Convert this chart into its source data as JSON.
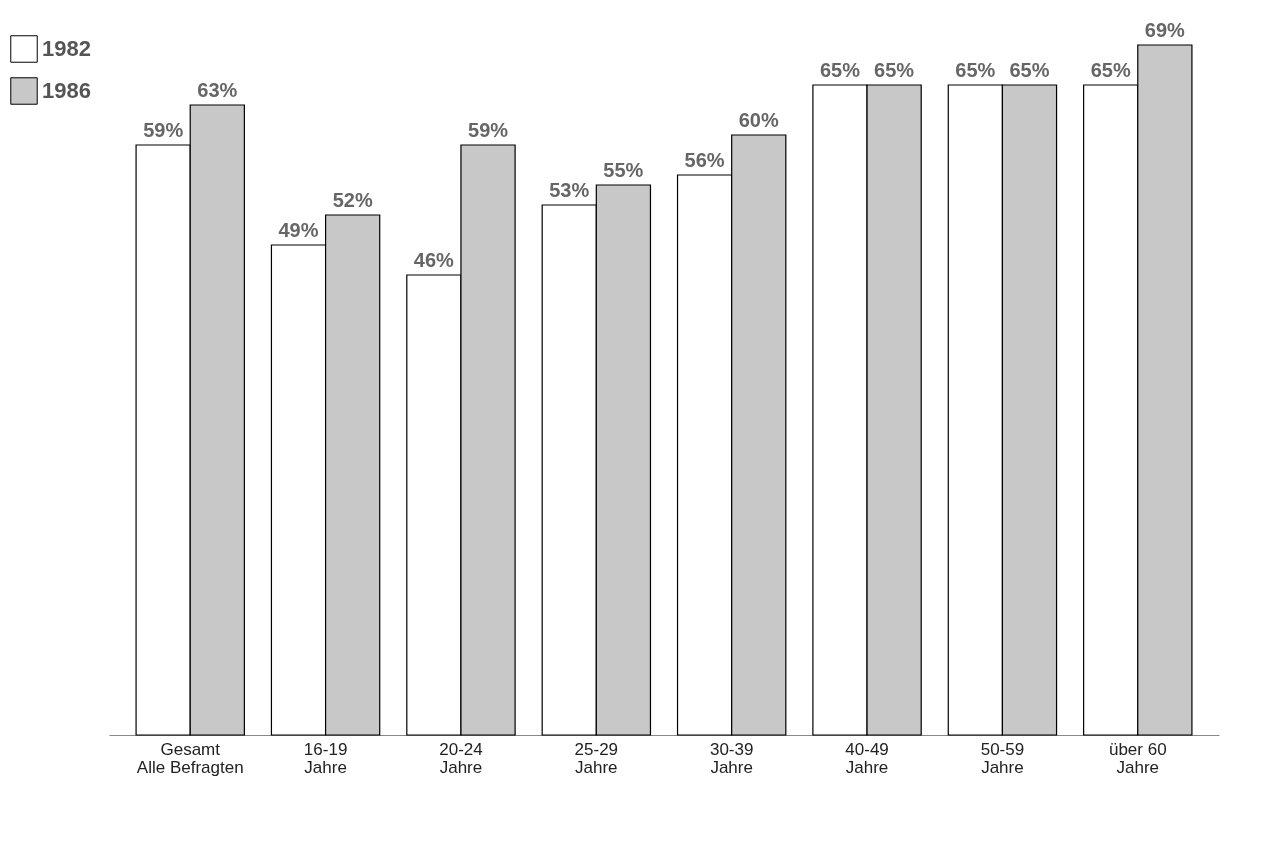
{
  "chart_data": {
    "type": "bar",
    "categories": [
      "Gesamt\nAlle Befragten",
      "16-19\nJahre",
      "20-24\nJahre",
      "25-29\nJahre",
      "30-39\nJahre",
      "40-49\nJahre",
      "50-59\nJahre",
      "über 60\nJahre"
    ],
    "series": [
      {
        "name": "1982",
        "color": "#ffffff",
        "values": [
          59,
          49,
          46,
          53,
          56,
          65,
          65,
          65
        ],
        "value_labels": [
          "59%",
          "49%",
          "46%",
          "53%",
          "56%",
          "65%",
          "65%",
          "65%"
        ]
      },
      {
        "name": "1986",
        "color": "#c8c8c8",
        "values": [
          63,
          52,
          59,
          55,
          60,
          65,
          65,
          69
        ],
        "value_labels": [
          "63%",
          "52%",
          "59%",
          "55%",
          "60%",
          "65%",
          "65%",
          "69%"
        ]
      }
    ],
    "legend": "top left",
    "grid": false
  }
}
